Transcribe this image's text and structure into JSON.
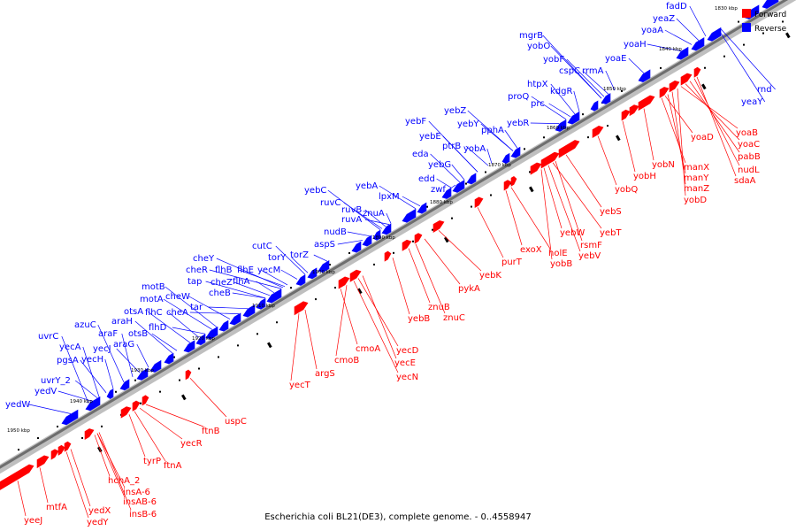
{
  "caption": "Escherichia coli BL21(DE3), complete genome. - 0..4558947",
  "legend": [
    {
      "label": "Forward",
      "color": "#ff0000"
    },
    {
      "label": "Reverse",
      "color": "#0000ff"
    }
  ],
  "colors": {
    "forward": "#ff0000",
    "reverse": "#0000ff",
    "backbone": "#8c8c8c"
  },
  "kbp_ticks": [
    "1830 kbp",
    "1840 kbp",
    "1850 kbp",
    "1860 kbp",
    "1870 kbp",
    "1880 kbp",
    "1890 kbp",
    "1900 kbp",
    "1910 kbp",
    "1920 kbp",
    "1930 kbp",
    "1940 kbp",
    "1950 kbp"
  ],
  "reverse_genes": [
    "fadD",
    "yeaZ",
    "yoaA",
    "yoaH",
    "mgrB",
    "yobO",
    "yobF",
    "cspC",
    "rrmA",
    "yoaE",
    "htpX",
    "kdgR",
    "proQ",
    "prc",
    "yebR",
    "yebZ",
    "yebY",
    "pphA",
    "yebF",
    "yebE",
    "ptrB",
    "yobA",
    "eda",
    "yebG",
    "edd",
    "zwf",
    "yebA",
    "lpxM",
    "yebC",
    "ruvC",
    "ruvB",
    "ruvA",
    "znuA",
    "nudB",
    "aspS",
    "cutC",
    "torY",
    "torZ",
    "cheY",
    "cheR",
    "flhB",
    "flhE",
    "yecM",
    "tap",
    "cheZ",
    "flhA",
    "cheB",
    "motB",
    "cheW",
    "motA",
    "cheA",
    "tar",
    "flhC",
    "otsA",
    "flhD",
    "araH",
    "otsB",
    "azuC",
    "araF",
    "yecJ",
    "araG",
    "uvrC",
    "yecA",
    "pgsA",
    "yecH",
    "uvrY_2",
    "yedV",
    "yedW",
    "rnd",
    "yeaY"
  ],
  "forward_genes": [
    "yoaB",
    "yoaD",
    "yoaC",
    "pabB",
    "manX",
    "yobN",
    "nudL",
    "manY",
    "yobH",
    "sdaA",
    "manZ",
    "yobD",
    "yobQ",
    "yebS",
    "yebT",
    "yebW",
    "rsmF",
    "yebV",
    "holE",
    "exoX",
    "yobB",
    "purT",
    "yebK",
    "pykA",
    "znuB",
    "yebB",
    "znuC",
    "yecD",
    "cmoA",
    "yecE",
    "cmoB",
    "yecN",
    "argS",
    "yecT",
    "uspC",
    "ftnB",
    "yecR",
    "tyrP",
    "ftnA",
    "hchA_2",
    "insA-6",
    "insAB-6",
    "insB-6",
    "yedX",
    "mtfA",
    "yedY",
    "yeeJ"
  ]
}
